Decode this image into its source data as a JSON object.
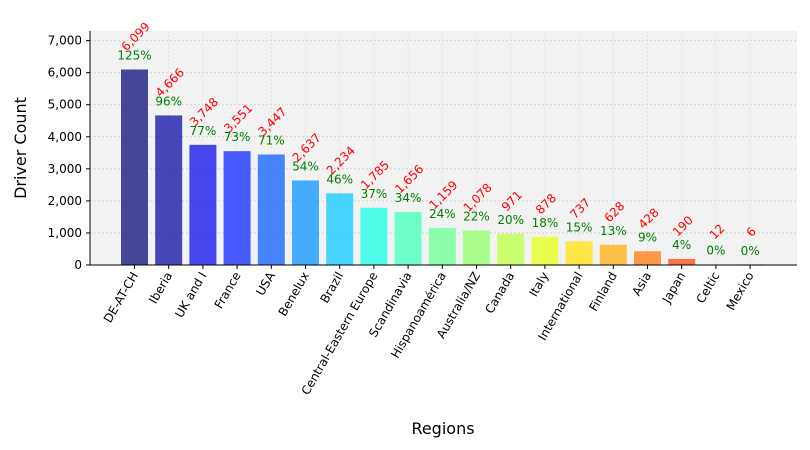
{
  "chart_data": {
    "type": "bar",
    "xlabel": "Regions",
    "ylabel": "Driver Count",
    "ylim": [
      0,
      7300
    ],
    "yticks": [
      0,
      1000,
      2000,
      3000,
      4000,
      5000,
      6000,
      7000
    ],
    "ytick_labels": [
      "0",
      "1,000",
      "2,000",
      "3,000",
      "4,000",
      "5,000",
      "6,000",
      "7,000"
    ],
    "grid": true,
    "categories": [
      "DE-AT-CH",
      "Iberia",
      "UK and I",
      "France",
      "USA",
      "Benelux",
      "Brazil",
      "Central-Eastern Europe",
      "Scandinavia",
      "Hispanoamérica",
      "Australia/NZ",
      "Canada",
      "Italy",
      "International",
      "Finland",
      "Asia",
      "Japan",
      "Celtic",
      "Mexico"
    ],
    "values": [
      6099,
      4666,
      3748,
      3551,
      3447,
      2637,
      2234,
      1785,
      1656,
      1159,
      1078,
      971,
      878,
      737,
      628,
      428,
      190,
      12,
      6
    ],
    "value_labels": [
      "6,099",
      "4,666",
      "3,748",
      "3,551",
      "3,447",
      "2,637",
      "2,234",
      "1,785",
      "1,656",
      "1,159",
      "1,078",
      "971",
      "878",
      "737",
      "628",
      "428",
      "190",
      "12",
      "6"
    ],
    "percent_labels": [
      "125%",
      "96%",
      "77%",
      "73%",
      "71%",
      "54%",
      "46%",
      "37%",
      "34%",
      "24%",
      "22%",
      "20%",
      "18%",
      "15%",
      "13%",
      "9%",
      "4%",
      "0%",
      "0%"
    ],
    "bar_colors": [
      "#1a1a80",
      "#1a1aaa",
      "#1a1aee",
      "#1a33ff",
      "#1a66ff",
      "#1a99ff",
      "#1acbff",
      "#26ffe6",
      "#4dffbf",
      "#73ff99",
      "#99ff73",
      "#bfff4d",
      "#e6ff26",
      "#ffe41a",
      "#ffb31a",
      "#ff821a",
      "#ff521a",
      "#ee1a1a",
      "#aa1a1a"
    ],
    "value_label_color": "#ff0000",
    "percent_label_color": "#008000"
  }
}
